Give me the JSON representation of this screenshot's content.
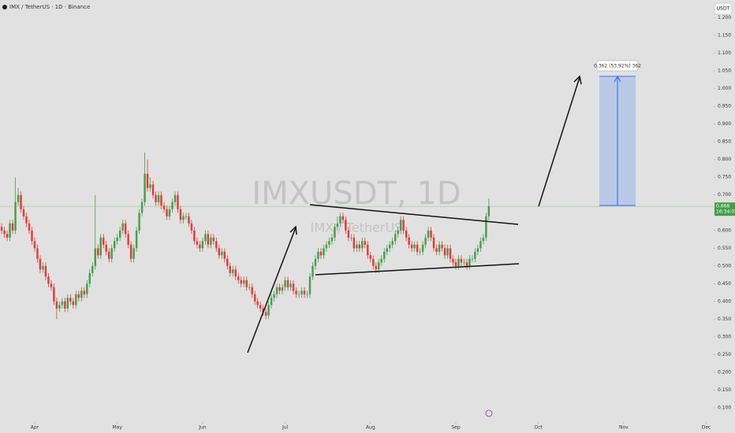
{
  "chart_data": {
    "type": "candlestick",
    "title": "IMX / TetherUS · 1D · Binance",
    "currency": "USDT",
    "watermark": "IMXUSDT, 1D",
    "watermark_sub": "IMX / TetherUS",
    "countdown": "16:34:07",
    "measure_label": "0.362 (53.92%) 362",
    "up_color": "#43a047",
    "down_color": "#e53935",
    "x": [
      -12,
      -11,
      -10,
      -9,
      -8,
      -7,
      -6,
      -5,
      -4,
      -3,
      -2,
      -1,
      0,
      1,
      2,
      3,
      4,
      5,
      6,
      7,
      8,
      9,
      10,
      11,
      12,
      13,
      14,
      15,
      16,
      17,
      18,
      19,
      20,
      21,
      22,
      23,
      24,
      25,
      26,
      27,
      28,
      29,
      30,
      31,
      32,
      33,
      34,
      35,
      36,
      37,
      38,
      39,
      40,
      41,
      42,
      43,
      44,
      45,
      46,
      47,
      48,
      49,
      50,
      51,
      52,
      53,
      54,
      55,
      56,
      57,
      58,
      59,
      60,
      61,
      62,
      63,
      64,
      65,
      66,
      67,
      68,
      69,
      70,
      71,
      72,
      73,
      74,
      75,
      76,
      77,
      78,
      79,
      80,
      81,
      82,
      83,
      84,
      85,
      86,
      87,
      88,
      89,
      90,
      91,
      92,
      93,
      94,
      95,
      96,
      97,
      98,
      99,
      100,
      101,
      102,
      103,
      104,
      105,
      106,
      107,
      108,
      109,
      110,
      111,
      112,
      113,
      114,
      115,
      116,
      117,
      118,
      119,
      120,
      121,
      122,
      123,
      124,
      125,
      126,
      127,
      128,
      129,
      130,
      131,
      132,
      133,
      134,
      135,
      136,
      137,
      138,
      139,
      140,
      141,
      142,
      143,
      144,
      145,
      146,
      147,
      148,
      149,
      150,
      151,
      152,
      153,
      154,
      155,
      156,
      157,
      158,
      159,
      160,
      161,
      162,
      163,
      164,
      165
    ],
    "open": [
      0.61,
      0.6,
      0.59,
      0.58,
      0.62,
      0.6,
      0.68,
      0.7,
      0.66,
      0.64,
      0.62,
      0.6,
      0.57,
      0.55,
      0.52,
      0.49,
      0.5,
      0.47,
      0.45,
      0.44,
      0.4,
      0.38,
      0.39,
      0.4,
      0.38,
      0.41,
      0.4,
      0.39,
      0.42,
      0.41,
      0.43,
      0.42,
      0.45,
      0.48,
      0.5,
      0.55,
      0.53,
      0.58,
      0.56,
      0.54,
      0.52,
      0.55,
      0.57,
      0.58,
      0.6,
      0.62,
      0.59,
      0.56,
      0.52,
      0.55,
      0.6,
      0.65,
      0.68,
      0.76,
      0.72,
      0.73,
      0.7,
      0.68,
      0.7,
      0.67,
      0.66,
      0.64,
      0.66,
      0.68,
      0.7,
      0.66,
      0.63,
      0.64,
      0.64,
      0.62,
      0.6,
      0.57,
      0.56,
      0.55,
      0.57,
      0.59,
      0.56,
      0.58,
      0.57,
      0.55,
      0.53,
      0.54,
      0.52,
      0.5,
      0.48,
      0.49,
      0.47,
      0.46,
      0.45,
      0.46,
      0.44,
      0.44,
      0.42,
      0.4,
      0.39,
      0.38,
      0.37,
      0.36,
      0.39,
      0.41,
      0.42,
      0.44,
      0.43,
      0.44,
      0.46,
      0.44,
      0.45,
      0.43,
      0.42,
      0.42,
      0.43,
      0.42,
      0.42,
      0.47,
      0.5,
      0.52,
      0.54,
      0.53,
      0.55,
      0.56,
      0.57,
      0.58,
      0.61,
      0.62,
      0.64,
      0.63,
      0.6,
      0.58,
      0.58,
      0.55,
      0.56,
      0.55,
      0.57,
      0.56,
      0.53,
      0.52,
      0.5,
      0.49,
      0.51,
      0.52,
      0.54,
      0.55,
      0.56,
      0.57,
      0.59,
      0.6,
      0.63,
      0.6,
      0.58,
      0.56,
      0.55,
      0.56,
      0.54,
      0.54,
      0.56,
      0.58,
      0.6,
      0.58,
      0.55,
      0.54,
      0.56,
      0.55,
      0.53,
      0.55,
      0.52,
      0.51,
      0.5,
      0.52,
      0.51,
      0.51,
      0.5,
      0.52,
      0.52,
      0.54,
      0.55,
      0.57,
      0.58,
      0.64
    ],
    "high": [
      0.62,
      0.61,
      0.6,
      0.63,
      0.63,
      0.75,
      0.72,
      0.71,
      0.67,
      0.65,
      0.63,
      0.61,
      0.58,
      0.56,
      0.53,
      0.51,
      0.51,
      0.48,
      0.46,
      0.45,
      0.41,
      0.4,
      0.41,
      0.41,
      0.42,
      0.42,
      0.41,
      0.43,
      0.43,
      0.44,
      0.44,
      0.46,
      0.49,
      0.51,
      0.7,
      0.56,
      0.59,
      0.59,
      0.57,
      0.55,
      0.56,
      0.58,
      0.59,
      0.61,
      0.63,
      0.63,
      0.6,
      0.57,
      0.56,
      0.61,
      0.66,
      0.69,
      0.82,
      0.8,
      0.75,
      0.74,
      0.71,
      0.71,
      0.71,
      0.68,
      0.67,
      0.67,
      0.69,
      0.71,
      0.71,
      0.67,
      0.65,
      0.65,
      0.65,
      0.63,
      0.61,
      0.58,
      0.57,
      0.58,
      0.6,
      0.6,
      0.59,
      0.59,
      0.58,
      0.56,
      0.55,
      0.55,
      0.53,
      0.51,
      0.5,
      0.5,
      0.48,
      0.47,
      0.47,
      0.47,
      0.45,
      0.45,
      0.43,
      0.41,
      0.4,
      0.39,
      0.38,
      0.4,
      0.42,
      0.43,
      0.45,
      0.45,
      0.45,
      0.47,
      0.47,
      0.46,
      0.46,
      0.44,
      0.43,
      0.44,
      0.44,
      0.43,
      0.48,
      0.51,
      0.53,
      0.55,
      0.55,
      0.56,
      0.57,
      0.58,
      0.59,
      0.62,
      0.64,
      0.65,
      0.65,
      0.64,
      0.61,
      0.59,
      0.59,
      0.57,
      0.57,
      0.58,
      0.58,
      0.57,
      0.54,
      0.53,
      0.51,
      0.52,
      0.53,
      0.55,
      0.56,
      0.57,
      0.58,
      0.6,
      0.61,
      0.64,
      0.64,
      0.61,
      0.59,
      0.57,
      0.57,
      0.57,
      0.55,
      0.57,
      0.59,
      0.61,
      0.61,
      0.59,
      0.56,
      0.57,
      0.57,
      0.56,
      0.56,
      0.56,
      0.53,
      0.52,
      0.53,
      0.53,
      0.52,
      0.52,
      0.53,
      0.53,
      0.55,
      0.56,
      0.58,
      0.59,
      0.65,
      0.69
    ],
    "low": [
      0.59,
      0.58,
      0.57,
      0.57,
      0.59,
      0.59,
      0.67,
      0.65,
      0.63,
      0.61,
      0.59,
      0.56,
      0.54,
      0.51,
      0.48,
      0.48,
      0.46,
      0.44,
      0.43,
      0.39,
      0.35,
      0.37,
      0.38,
      0.37,
      0.37,
      0.39,
      0.38,
      0.38,
      0.4,
      0.4,
      0.41,
      0.41,
      0.44,
      0.47,
      0.49,
      0.52,
      0.52,
      0.55,
      0.53,
      0.51,
      0.51,
      0.54,
      0.56,
      0.57,
      0.59,
      0.58,
      0.55,
      0.51,
      0.51,
      0.54,
      0.59,
      0.64,
      0.67,
      0.71,
      0.71,
      0.69,
      0.67,
      0.67,
      0.66,
      0.65,
      0.63,
      0.63,
      0.65,
      0.67,
      0.65,
      0.62,
      0.62,
      0.63,
      0.61,
      0.59,
      0.56,
      0.55,
      0.54,
      0.54,
      0.56,
      0.55,
      0.55,
      0.56,
      0.54,
      0.52,
      0.52,
      0.51,
      0.49,
      0.47,
      0.47,
      0.46,
      0.45,
      0.44,
      0.44,
      0.43,
      0.43,
      0.41,
      0.39,
      0.38,
      0.37,
      0.36,
      0.35,
      0.35,
      0.38,
      0.4,
      0.41,
      0.42,
      0.42,
      0.43,
      0.43,
      0.43,
      0.42,
      0.41,
      0.41,
      0.41,
      0.41,
      0.41,
      0.41,
      0.46,
      0.49,
      0.51,
      0.52,
      0.52,
      0.54,
      0.55,
      0.56,
      0.57,
      0.6,
      0.61,
      0.62,
      0.59,
      0.57,
      0.57,
      0.54,
      0.54,
      0.54,
      0.54,
      0.55,
      0.52,
      0.51,
      0.49,
      0.48,
      0.48,
      0.5,
      0.51,
      0.53,
      0.54,
      0.55,
      0.56,
      0.58,
      0.59,
      0.59,
      0.57,
      0.55,
      0.54,
      0.54,
      0.53,
      0.53,
      0.53,
      0.55,
      0.57,
      0.57,
      0.54,
      0.53,
      0.53,
      0.54,
      0.52,
      0.52,
      0.51,
      0.5,
      0.49,
      0.49,
      0.5,
      0.5,
      0.49,
      0.49,
      0.51,
      0.51,
      0.53,
      0.54,
      0.56,
      0.57,
      0.63
    ],
    "close": [
      0.6,
      0.59,
      0.58,
      0.62,
      0.6,
      0.68,
      0.7,
      0.66,
      0.64,
      0.62,
      0.6,
      0.57,
      0.55,
      0.52,
      0.49,
      0.5,
      0.47,
      0.45,
      0.44,
      0.4,
      0.38,
      0.39,
      0.4,
      0.38,
      0.41,
      0.4,
      0.39,
      0.42,
      0.41,
      0.43,
      0.42,
      0.45,
      0.48,
      0.5,
      0.55,
      0.53,
      0.58,
      0.56,
      0.54,
      0.52,
      0.55,
      0.57,
      0.58,
      0.6,
      0.62,
      0.59,
      0.56,
      0.52,
      0.55,
      0.6,
      0.65,
      0.68,
      0.76,
      0.72,
      0.73,
      0.7,
      0.68,
      0.7,
      0.67,
      0.66,
      0.64,
      0.66,
      0.68,
      0.7,
      0.66,
      0.63,
      0.64,
      0.64,
      0.62,
      0.6,
      0.57,
      0.56,
      0.55,
      0.57,
      0.59,
      0.56,
      0.58,
      0.57,
      0.55,
      0.53,
      0.54,
      0.52,
      0.5,
      0.48,
      0.49,
      0.47,
      0.46,
      0.45,
      0.46,
      0.44,
      0.44,
      0.42,
      0.4,
      0.39,
      0.38,
      0.37,
      0.36,
      0.39,
      0.41,
      0.42,
      0.44,
      0.43,
      0.44,
      0.46,
      0.44,
      0.45,
      0.43,
      0.42,
      0.42,
      0.43,
      0.42,
      0.42,
      0.47,
      0.5,
      0.52,
      0.54,
      0.53,
      0.55,
      0.56,
      0.57,
      0.58,
      0.61,
      0.62,
      0.64,
      0.63,
      0.6,
      0.58,
      0.58,
      0.55,
      0.56,
      0.55,
      0.57,
      0.56,
      0.53,
      0.52,
      0.5,
      0.49,
      0.51,
      0.52,
      0.54,
      0.55,
      0.56,
      0.57,
      0.59,
      0.6,
      0.63,
      0.6,
      0.58,
      0.56,
      0.55,
      0.56,
      0.54,
      0.54,
      0.56,
      0.58,
      0.6,
      0.58,
      0.55,
      0.54,
      0.56,
      0.55,
      0.53,
      0.55,
      0.52,
      0.51,
      0.5,
      0.52,
      0.51,
      0.51,
      0.5,
      0.52,
      0.52,
      0.54,
      0.55,
      0.57,
      0.58,
      0.64,
      0.668
    ],
    "xlim": [
      -12.6,
      246.7
    ],
    "ylim": [
      0.06,
      1.25
    ],
    "xticks": [
      {
        "value": 0,
        "label": "Apr"
      },
      {
        "value": 30,
        "label": "May"
      },
      {
        "value": 61,
        "label": "Jun"
      },
      {
        "value": 91,
        "label": "Jul"
      },
      {
        "value": 122,
        "label": "Aug"
      },
      {
        "value": 153,
        "label": "Sep"
      },
      {
        "value": 183,
        "label": "Oct"
      },
      {
        "value": 214,
        "label": "Nov"
      },
      {
        "value": 244,
        "label": "Dec"
      }
    ],
    "yticks": [
      {
        "value": 0.1,
        "label": "0.100"
      },
      {
        "value": 0.15,
        "label": "0.150"
      },
      {
        "value": 0.2,
        "label": "0.200"
      },
      {
        "value": 0.25,
        "label": "0.250"
      },
      {
        "value": 0.3,
        "label": "0.300"
      },
      {
        "value": 0.35,
        "label": "0.350"
      },
      {
        "value": 0.4,
        "label": "0.400"
      },
      {
        "value": 0.45,
        "label": "0.450"
      },
      {
        "value": 0.5,
        "label": "0.500"
      },
      {
        "value": 0.55,
        "label": "0.550"
      },
      {
        "value": 0.6,
        "label": "0.600"
      },
      {
        "value": 0.65,
        "label": "0.650"
      },
      {
        "value": 0.7,
        "label": "0.700"
      },
      {
        "value": 0.75,
        "label": "0.750"
      },
      {
        "value": 0.8,
        "label": "0.800"
      },
      {
        "value": 0.85,
        "label": "0.850"
      },
      {
        "value": 0.9,
        "label": "0.900"
      },
      {
        "value": 0.95,
        "label": "0.950"
      },
      {
        "value": 1.0,
        "label": "1.000"
      },
      {
        "value": 1.05,
        "label": "1.050"
      },
      {
        "value": 1.1,
        "label": "1.100"
      },
      {
        "value": 1.15,
        "label": "1.150"
      },
      {
        "value": 1.2,
        "label": "1.200"
      }
    ],
    "grid": false
  }
}
